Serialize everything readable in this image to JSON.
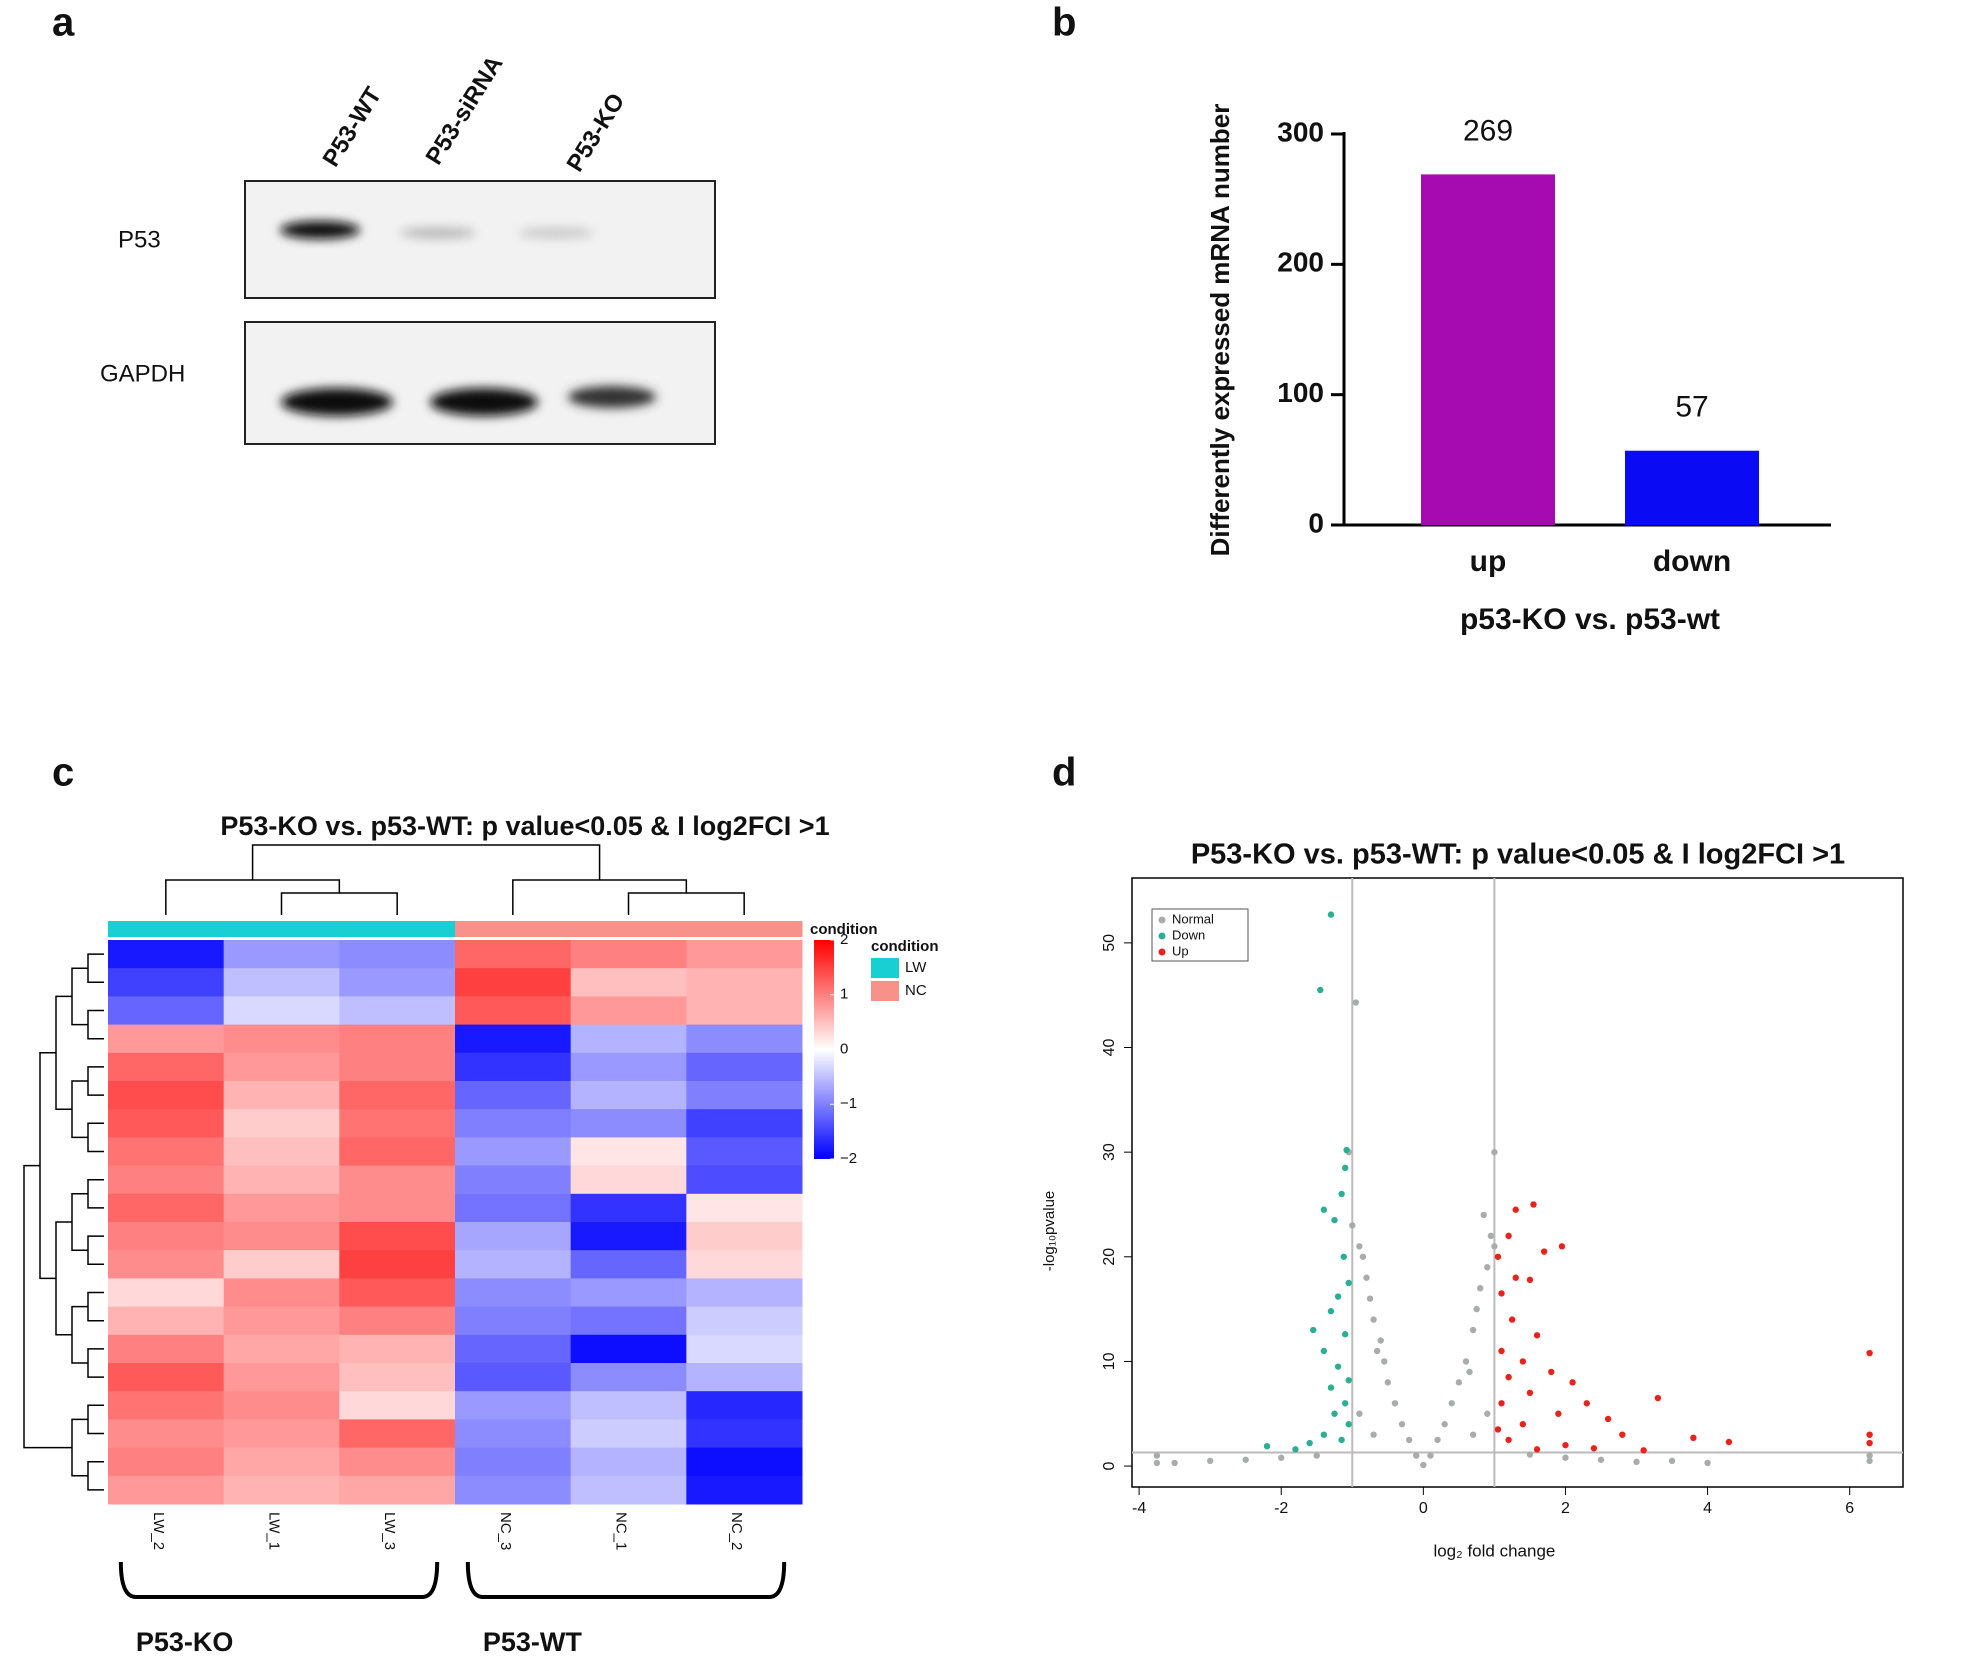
{
  "panels": [
    "a",
    "b",
    "c",
    "d"
  ],
  "blot": {
    "lanes": [
      "P53-WT",
      "P53-siRNA",
      "P53-KO"
    ],
    "rows": [
      "P53",
      "GAPDH"
    ]
  },
  "chart_data": [
    {
      "type": "bar",
      "y_label": "Differently expressed mRNA number",
      "x_label": "p53-KO vs. p53-wt",
      "categories": [
        "up",
        "down"
      ],
      "values": [
        269,
        57
      ],
      "colors": [
        "#a50bb0",
        "#0a0af5"
      ],
      "ylim": [
        0,
        300
      ],
      "yticks": [
        0,
        100,
        200,
        300
      ]
    },
    {
      "type": "heatmap",
      "title": "P53-KO vs. p53-WT: p value<0.05 & I log2FCI >1",
      "columns": [
        "LW_2",
        "LW_1",
        "LW_3",
        "NC_3",
        "NC_1",
        "NC_2"
      ],
      "column_conditions": [
        "LW",
        "LW",
        "LW",
        "NC",
        "NC",
        "NC"
      ],
      "colorbar_title": "condition",
      "legend_title": "condition",
      "conditions": [
        {
          "name": "LW",
          "color": "#18d0d3"
        },
        {
          "name": "NC",
          "color": "#f7918a"
        }
      ],
      "groups": [
        "P53-KO",
        "P53-WT"
      ],
      "values": [
        [
          -1.8,
          -0.8,
          -0.9,
          1.2,
          1.0,
          0.8
        ],
        [
          -1.5,
          -0.5,
          -0.8,
          1.5,
          0.5,
          0.6
        ],
        [
          -1.2,
          -0.3,
          -0.5,
          1.3,
          0.8,
          0.6
        ],
        [
          0.8,
          0.9,
          1.0,
          -1.8,
          -0.6,
          -0.9
        ],
        [
          1.2,
          0.8,
          1.0,
          -1.6,
          -0.8,
          -1.2
        ],
        [
          1.4,
          0.6,
          1.2,
          -1.2,
          -0.6,
          -1.0
        ],
        [
          1.3,
          0.4,
          1.1,
          -1.0,
          -0.9,
          -1.5
        ],
        [
          1.1,
          0.5,
          1.2,
          -0.8,
          0.2,
          -1.3
        ],
        [
          1.0,
          0.6,
          0.9,
          -1.0,
          0.3,
          -1.4
        ],
        [
          1.2,
          0.8,
          0.9,
          -1.1,
          -1.6,
          0.2
        ],
        [
          1.0,
          0.9,
          1.4,
          -0.7,
          -1.8,
          0.4
        ],
        [
          0.9,
          0.4,
          1.5,
          -0.6,
          -1.2,
          0.3
        ],
        [
          0.3,
          0.9,
          1.3,
          -0.9,
          -0.8,
          -0.6
        ],
        [
          0.6,
          0.8,
          1.0,
          -1.0,
          -1.1,
          -0.4
        ],
        [
          1.0,
          0.7,
          0.6,
          -1.2,
          -1.9,
          -0.3
        ],
        [
          1.3,
          0.8,
          0.5,
          -1.3,
          -0.9,
          -0.6
        ],
        [
          1.1,
          0.9,
          0.3,
          -0.8,
          -0.5,
          -1.7
        ],
        [
          0.9,
          0.8,
          1.2,
          -0.9,
          -0.4,
          -1.6
        ],
        [
          1.0,
          0.7,
          0.9,
          -1.0,
          -0.6,
          -1.9
        ],
        [
          0.8,
          0.6,
          0.7,
          -0.9,
          -0.5,
          -1.8
        ]
      ],
      "colorbar": {
        "lim": [
          -2,
          2
        ],
        "ticks": [
          2,
          1,
          0,
          {
            "value": -1,
            "label": "−1"
          },
          {
            "value": -2,
            "label": "−2"
          }
        ],
        "colors": [
          "#0000ff",
          "#ffffff",
          "#ff0000"
        ]
      }
    },
    {
      "type": "scatter",
      "title": "P53-KO vs. p53-WT: p value<0.05 & I log2FCI >1",
      "x_label": "log₂ fold change",
      "y_label": "-log₁₀pvalue",
      "xlim": [
        -4.1,
        6.75
      ],
      "xticks": [
        -4,
        -2,
        0,
        2,
        4,
        6
      ],
      "ylim": [
        -2,
        56.2
      ],
      "yticks": [
        0,
        10,
        20,
        30,
        40,
        50
      ],
      "thresholds": {
        "x": [
          -1,
          1
        ],
        "y": 1.3
      },
      "legend": "top-left",
      "series": [
        {
          "name": "Normal",
          "color": "#a8adac",
          "x": [
            -0.95,
            -1.05,
            -1.0,
            -0.9,
            -0.8,
            -0.75,
            -0.7,
            -0.6,
            -0.55,
            -0.5,
            -0.4,
            -0.3,
            -0.2,
            -0.1,
            0,
            0.1,
            0.2,
            0.3,
            0.4,
            0.5,
            0.6,
            0.7,
            0.75,
            0.8,
            0.9,
            0.95,
            1.0,
            0.85,
            1.0,
            -0.85,
            -0.65,
            0.65,
            -1.5,
            -2,
            -2.5,
            -3,
            -3.5,
            1.5,
            2,
            2.5,
            3,
            3.5,
            4,
            -3.75,
            -3.75,
            6.28,
            6.28,
            -0.9,
            0.9,
            -0.7,
            0.7
          ],
          "values": [
            44.3,
            30,
            23,
            21,
            18,
            16,
            14,
            12,
            10,
            8,
            6,
            4,
            2.5,
            1,
            0.1,
            1,
            2.5,
            4,
            6,
            8,
            10,
            13,
            15,
            17,
            19,
            22,
            30,
            24,
            21,
            20,
            11,
            9,
            1,
            0.8,
            0.6,
            0.5,
            0.3,
            1.1,
            0.8,
            0.6,
            0.4,
            0.5,
            0.3,
            0.3,
            1,
            0.5,
            1,
            5,
            5,
            3,
            3
          ]
        },
        {
          "name": "Down",
          "color": "#2cae94",
          "x": [
            -1.3,
            -1.45,
            -1.08,
            -1.1,
            -1.15,
            -1.25,
            -1.4,
            -1.12,
            -1.05,
            -1.2,
            -1.3,
            -1.55,
            -1.1,
            -1.4,
            -1.2,
            -1.05,
            -1.3,
            -1.1,
            -1.25,
            -1.05,
            -1.4,
            -1.6,
            -2.2,
            -1.8,
            -1.15
          ],
          "values": [
            52.7,
            45.5,
            30.2,
            28.5,
            26,
            23.5,
            24.5,
            20,
            17.5,
            16.2,
            14.8,
            13,
            12.6,
            11,
            9.5,
            8.2,
            7.5,
            6,
            5,
            4,
            3,
            2.2,
            1.9,
            1.6,
            2.5
          ]
        },
        {
          "name": "Up",
          "color": "#e8231b",
          "x": [
            1.55,
            1.3,
            1.2,
            1.95,
            1.7,
            1.05,
            1.3,
            1.1,
            1.5,
            1.25,
            1.6,
            1.1,
            1.4,
            1.8,
            2.1,
            1.2,
            1.5,
            2.3,
            3.3,
            2.6,
            1.9,
            1.1,
            1.4,
            2.8,
            3.8,
            4.3,
            2.0,
            1.2,
            1.6,
            2.4,
            3.1,
            6.28,
            6.28,
            6.28,
            1.05
          ],
          "values": [
            25,
            24.5,
            22,
            21,
            20.5,
            20,
            18,
            16.5,
            17.8,
            14,
            12.5,
            11,
            10,
            9,
            8,
            8.5,
            7,
            6,
            6.5,
            4.5,
            5,
            6,
            4,
            3,
            2.7,
            2.3,
            2,
            2.5,
            1.6,
            1.7,
            1.5,
            10.8,
            3,
            2.2,
            3.5
          ]
        }
      ]
    }
  ]
}
